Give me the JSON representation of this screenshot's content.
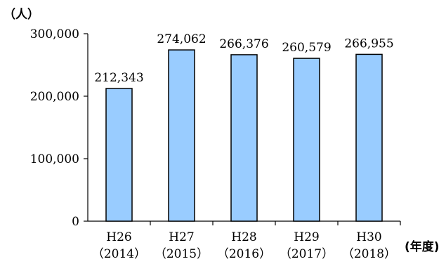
{
  "chart_data": {
    "type": "bar",
    "title": "",
    "ylabel": "（人）",
    "xlabel": "(年度)",
    "categories": [
      {
        "line1": "H26",
        "line2": "（2014）"
      },
      {
        "line1": "H27",
        "line2": "（2015）"
      },
      {
        "line1": "H28",
        "line2": "（2016）"
      },
      {
        "line1": "H29",
        "line2": "（2017）"
      },
      {
        "line1": "H30",
        "line2": "（2018）"
      }
    ],
    "values": [
      212343,
      274062,
      266376,
      260579,
      266955
    ],
    "value_labels": [
      "212,343",
      "274,062",
      "266,376",
      "260,579",
      "266,955"
    ],
    "ylim": [
      0,
      300000
    ],
    "yticks": [
      0,
      100000,
      200000,
      300000
    ],
    "ytick_labels": [
      "0",
      "100,000",
      "200,000",
      "300,000"
    ],
    "grid": false,
    "bar_color": "#99ccff",
    "bar_edge_color": "#000000"
  }
}
